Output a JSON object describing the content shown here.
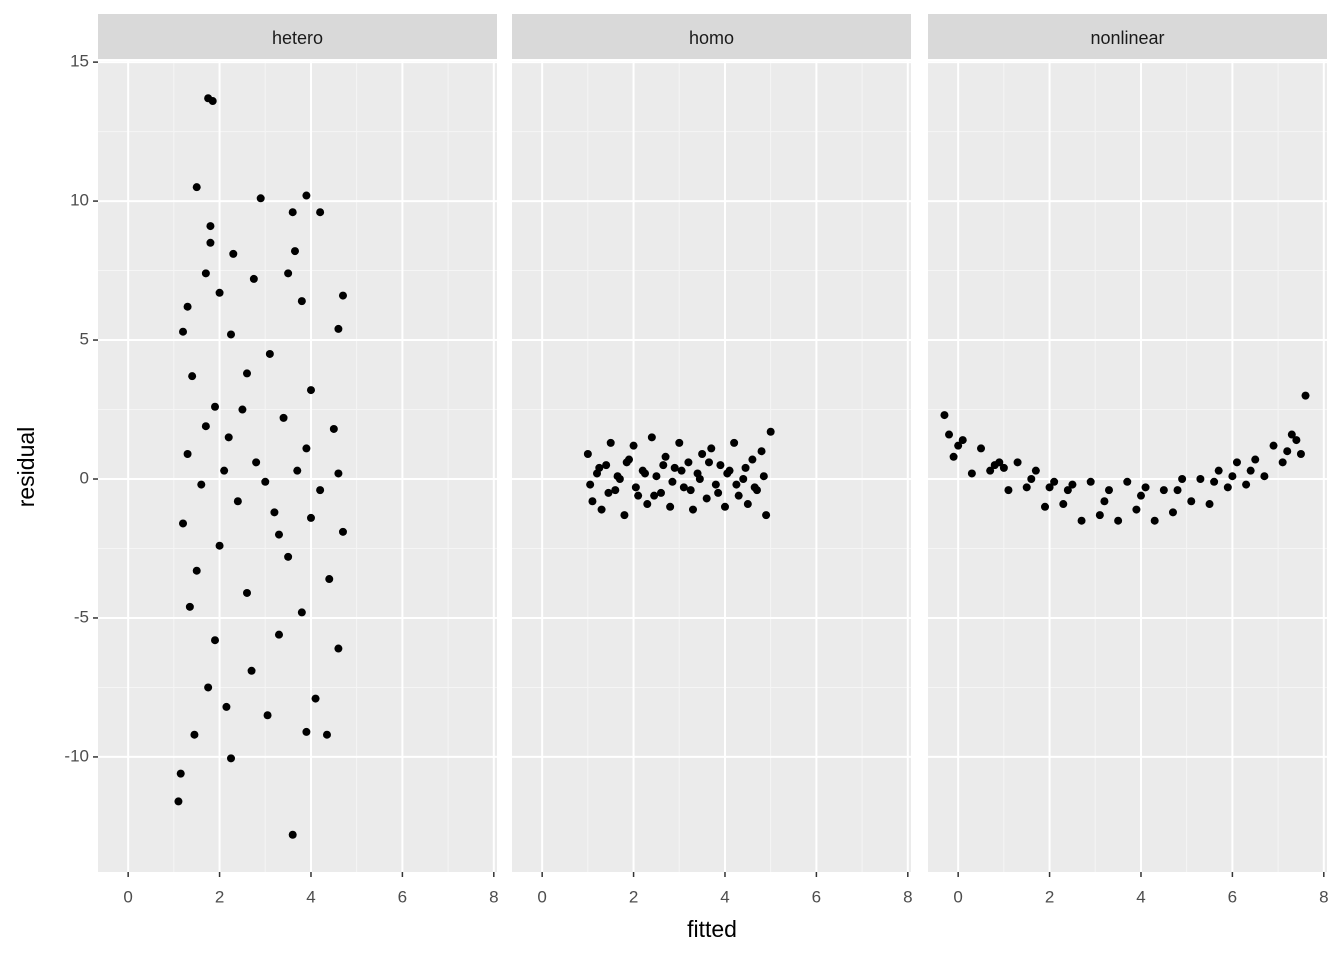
{
  "chart_data": [
    {
      "type": "scatter",
      "title": "hetero",
      "color": "#000000",
      "xlim": [
        -0.66,
        8.07
      ],
      "ylim": [
        -14.14,
        15.04
      ],
      "xticks": [
        0,
        2,
        4,
        6,
        8
      ],
      "yticks": [
        -10,
        -5,
        0,
        5,
        10,
        15
      ],
      "x": [
        1.75,
        1.85,
        1.5,
        2.9,
        3.9,
        3.6,
        4.2,
        1.8,
        1.8,
        2.3,
        3.65,
        1.7,
        2.75,
        3.5,
        2.0,
        4.7,
        3.8,
        1.3,
        2.25,
        1.2,
        4.6,
        3.1,
        2.6,
        1.4,
        4.0,
        1.9,
        3.4,
        2.2,
        4.5,
        1.3,
        2.8,
        3.7,
        1.6,
        4.2,
        2.4,
        3.2,
        1.2,
        4.7,
        2.0,
        3.5,
        1.5,
        4.4,
        2.6,
        1.35,
        3.8,
        1.9,
        3.3,
        4.6,
        2.7,
        1.75,
        4.1,
        3.05,
        3.9,
        4.35,
        1.45,
        2.15,
        2.25,
        1.15,
        1.1,
        3.6,
        2.1,
        3.0,
        3.9,
        1.7,
        4.6,
        2.5,
        3.3,
        4.0
      ],
      "y": [
        13.7,
        13.6,
        10.5,
        10.1,
        10.2,
        9.6,
        9.6,
        9.1,
        8.5,
        8.1,
        8.2,
        7.4,
        7.2,
        7.4,
        6.7,
        6.6,
        6.4,
        6.2,
        5.2,
        5.3,
        5.4,
        4.5,
        3.8,
        3.7,
        3.2,
        2.6,
        2.2,
        1.5,
        1.8,
        0.9,
        0.6,
        0.3,
        -0.2,
        -0.4,
        -0.8,
        -1.2,
        -1.6,
        -1.9,
        -2.4,
        -2.8,
        -3.3,
        -3.6,
        -4.1,
        -4.6,
        -4.8,
        -5.8,
        -5.6,
        -6.1,
        -6.9,
        -7.5,
        -7.9,
        -8.5,
        -9.1,
        -9.2,
        -9.2,
        -8.2,
        -10.05,
        -10.6,
        -11.6,
        -12.8,
        0.3,
        -0.1,
        1.1,
        1.9,
        0.2,
        2.5,
        -2.0,
        -1.4
      ]
    },
    {
      "type": "scatter",
      "title": "homo",
      "color": "#000000",
      "xlim": [
        -0.66,
        8.07
      ],
      "ylim": [
        -14.14,
        15.04
      ],
      "xticks": [
        0,
        2,
        4,
        6,
        8
      ],
      "yticks": [
        -10,
        -5,
        0,
        5,
        10,
        15
      ],
      "x": [
        1.0,
        1.1,
        1.2,
        1.3,
        1.4,
        1.5,
        1.6,
        1.7,
        1.8,
        1.9,
        2.0,
        2.1,
        2.2,
        2.3,
        2.4,
        2.5,
        2.6,
        2.7,
        2.8,
        2.9,
        3.0,
        3.1,
        3.2,
        3.3,
        3.4,
        3.5,
        3.6,
        3.7,
        3.8,
        3.9,
        4.0,
        4.1,
        4.2,
        4.3,
        4.4,
        4.5,
        4.6,
        4.7,
        4.8,
        4.9,
        5.0,
        1.05,
        1.25,
        1.45,
        1.65,
        1.85,
        2.05,
        2.25,
        2.45,
        2.65,
        2.85,
        3.05,
        3.25,
        3.45,
        3.65,
        3.85,
        4.05,
        4.25,
        4.45,
        4.65,
        4.85
      ],
      "y": [
        0.9,
        -0.8,
        0.2,
        -1.1,
        0.5,
        1.3,
        -0.4,
        0.0,
        -1.3,
        0.7,
        1.2,
        -0.6,
        0.3,
        -0.9,
        1.5,
        0.1,
        -0.5,
        0.8,
        -1.0,
        0.4,
        1.3,
        -0.3,
        0.6,
        -1.1,
        0.2,
        0.9,
        -0.7,
        1.1,
        -0.2,
        0.5,
        -1.0,
        0.3,
        1.3,
        -0.6,
        0.0,
        -0.9,
        0.7,
        -0.4,
        1.0,
        -1.3,
        1.7,
        -0.2,
        0.4,
        -0.5,
        0.1,
        0.6,
        -0.3,
        0.2,
        -0.6,
        0.5,
        -0.1,
        0.3,
        -0.4,
        0.0,
        0.6,
        -0.5,
        0.2,
        -0.2,
        0.4,
        -0.3,
        0.1
      ]
    },
    {
      "type": "scatter",
      "title": "nonlinear",
      "color": "#000000",
      "xlim": [
        -0.66,
        8.07
      ],
      "ylim": [
        -14.14,
        15.04
      ],
      "xticks": [
        0,
        2,
        4,
        6,
        8
      ],
      "yticks": [
        -10,
        -5,
        0,
        5,
        10,
        15
      ],
      "x": [
        -0.3,
        -0.1,
        0.1,
        0.3,
        0.5,
        0.7,
        0.9,
        1.1,
        1.3,
        1.5,
        1.7,
        1.9,
        2.1,
        2.3,
        2.5,
        2.7,
        2.9,
        3.1,
        3.3,
        3.5,
        3.7,
        3.9,
        4.1,
        4.3,
        4.5,
        4.7,
        4.9,
        5.1,
        5.3,
        5.5,
        5.7,
        5.9,
        6.1,
        6.3,
        6.5,
        6.7,
        6.9,
        7.1,
        7.3,
        7.5,
        7.6,
        0.0,
        0.8,
        1.6,
        2.4,
        3.2,
        4.0,
        4.8,
        5.6,
        6.4,
        7.2,
        7.4,
        -0.2,
        1.0,
        2.0,
        6.0
      ],
      "y": [
        2.3,
        0.8,
        1.4,
        0.2,
        1.1,
        0.3,
        0.6,
        -0.4,
        0.6,
        -0.3,
        0.3,
        -1.0,
        -0.1,
        -0.9,
        -0.2,
        -1.5,
        -0.1,
        -1.3,
        -0.4,
        -1.5,
        -0.1,
        -1.1,
        -0.3,
        -1.5,
        -0.4,
        -1.2,
        0.0,
        -0.8,
        0.0,
        -0.9,
        0.3,
        -0.3,
        0.6,
        -0.2,
        0.7,
        0.1,
        1.2,
        0.6,
        1.6,
        0.9,
        3.0,
        1.2,
        0.5,
        0.0,
        -0.4,
        -0.8,
        -0.6,
        -0.4,
        -0.1,
        0.3,
        1.0,
        1.4,
        1.6,
        0.4,
        -0.3,
        0.1
      ]
    }
  ],
  "x_label": "fitted",
  "y_label": "residual"
}
